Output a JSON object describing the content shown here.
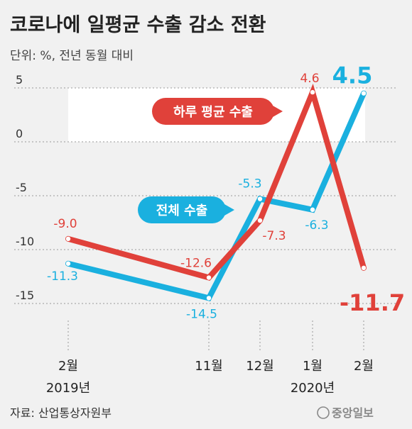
{
  "chart_data": {
    "type": "line",
    "title": "코로나에 일평균 수출 감소 전환",
    "unit_label": "단위: %, 전년 동월 대비",
    "categories": [
      {
        "month": "2월",
        "year": "2019년"
      },
      {
        "month": "11월",
        "year": ""
      },
      {
        "month": "12월",
        "year": ""
      },
      {
        "month": "1월",
        "year": "2020년"
      },
      {
        "month": "2월",
        "year": ""
      }
    ],
    "y_ticks": [
      "5",
      "0",
      "-5",
      "-10",
      "-15"
    ],
    "ylim": [
      -15,
      5
    ],
    "series": [
      {
        "name": "전체 수출",
        "color": "#1ab0df",
        "values": [
          -11.3,
          -14.5,
          -5.3,
          -6.3,
          4.5
        ],
        "labels": [
          "-11.3",
          "-14.5",
          "-5.3",
          "-6.3",
          "4.5"
        ]
      },
      {
        "name": "하루 평균 수출",
        "color": "#e0413a",
        "values": [
          -9.0,
          -12.6,
          -7.3,
          4.6,
          -11.7
        ],
        "labels": [
          "-9.0",
          "-12.6",
          "-7.3",
          "4.6",
          "-11.7"
        ]
      }
    ],
    "source": "자료: 산업통상자원부",
    "logo": "중앙일보"
  }
}
